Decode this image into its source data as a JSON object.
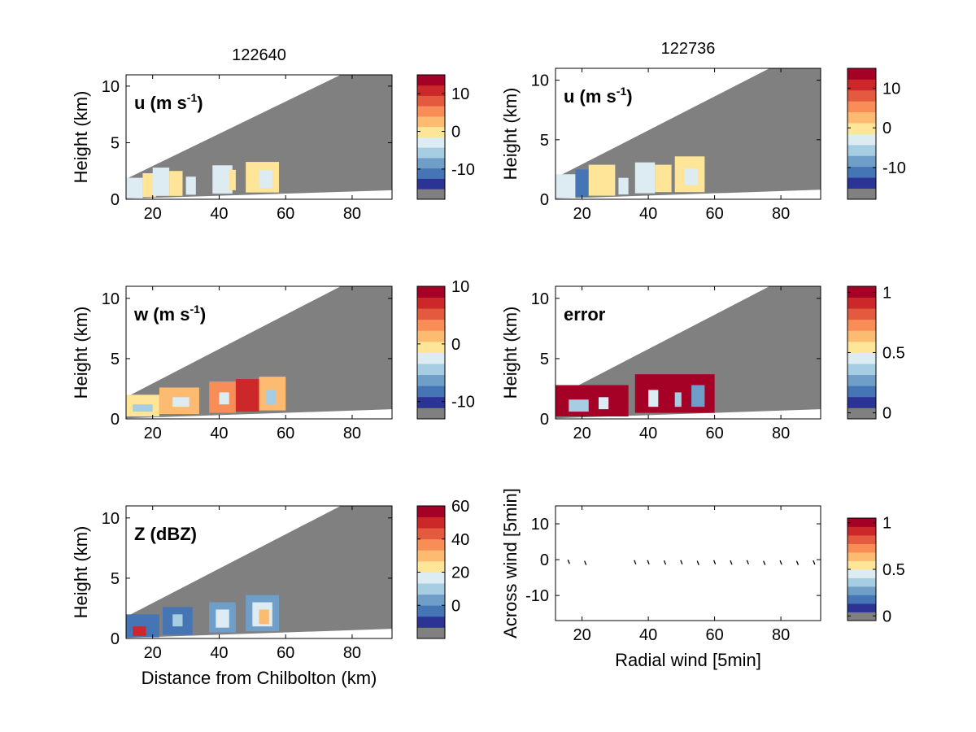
{
  "colors": {
    "background": "#ffffff",
    "nodata": "#808080",
    "colormap": [
      "#2b3494",
      "#4575b4",
      "#6f9ec9",
      "#a6cde2",
      "#dcecf2",
      "#fee597",
      "#fdbb71",
      "#f88d57",
      "#e45a3e",
      "#cc2829",
      "#a50026"
    ]
  },
  "chart_data": [
    {
      "id": "p1",
      "type": "heatmap",
      "title": "122640",
      "annotation": {
        "main": "u (m s",
        "sup": "-1",
        "tail": ")"
      },
      "xlabel": "",
      "ylabel": "Height (km)",
      "xlim": [
        12,
        92
      ],
      "ylim": [
        0,
        11
      ],
      "xticks": [
        20,
        40,
        60,
        80
      ],
      "yticks": [
        0,
        5,
        10
      ],
      "colorbar": {
        "range": [
          -18,
          15
        ],
        "ticks": [
          10,
          0,
          -10
        ]
      },
      "cells": [
        {
          "x0": 12,
          "x1": 17,
          "y0": 0.1,
          "y1": 1.9,
          "level": 4
        },
        {
          "x0": 17,
          "x1": 21,
          "y0": 0.2,
          "y1": 2.3,
          "level": 5
        },
        {
          "x0": 20,
          "x1": 25,
          "y0": 0.3,
          "y1": 2.8,
          "level": 4
        },
        {
          "x0": 25,
          "x1": 29,
          "y0": 0.3,
          "y1": 2.5,
          "level": 5
        },
        {
          "x0": 30,
          "x1": 33,
          "y0": 0.4,
          "y1": 2.0,
          "level": 4
        },
        {
          "x0": 38,
          "x1": 44,
          "y0": 0.5,
          "y1": 3.0,
          "level": 4
        },
        {
          "x0": 43,
          "x1": 45,
          "y0": 0.8,
          "y1": 2.6,
          "level": 5
        },
        {
          "x0": 48,
          "x1": 58,
          "y0": 0.6,
          "y1": 3.3,
          "level": 5
        },
        {
          "x0": 52,
          "x1": 56,
          "y0": 1.0,
          "y1": 2.6,
          "level": 4
        }
      ]
    },
    {
      "id": "p2",
      "type": "heatmap",
      "title": "122736",
      "annotation": {
        "main": "u (m s",
        "sup": "-1",
        "tail": ")"
      },
      "xlabel": "",
      "ylabel": "Height (km)",
      "xlim": [
        12,
        92
      ],
      "ylim": [
        0,
        11
      ],
      "xticks": [
        20,
        40,
        60,
        80
      ],
      "yticks": [
        0,
        5,
        10
      ],
      "colorbar": {
        "range": [
          -18,
          15
        ],
        "ticks": [
          10,
          0,
          -10
        ]
      },
      "cells": [
        {
          "x0": 12,
          "x1": 18,
          "y0": 0.1,
          "y1": 2.1,
          "level": 4
        },
        {
          "x0": 18,
          "x1": 22,
          "y0": 0.2,
          "y1": 2.5,
          "level": 1
        },
        {
          "x0": 22,
          "x1": 30,
          "y0": 0.3,
          "y1": 2.9,
          "level": 5
        },
        {
          "x0": 31,
          "x1": 34,
          "y0": 0.4,
          "y1": 1.8,
          "level": 4
        },
        {
          "x0": 36,
          "x1": 42,
          "y0": 0.5,
          "y1": 3.1,
          "level": 4
        },
        {
          "x0": 42,
          "x1": 47,
          "y0": 0.6,
          "y1": 2.9,
          "level": 5
        },
        {
          "x0": 48,
          "x1": 57,
          "y0": 0.6,
          "y1": 3.6,
          "level": 5
        },
        {
          "x0": 51,
          "x1": 55,
          "y0": 1.2,
          "y1": 2.6,
          "level": 4
        }
      ]
    },
    {
      "id": "p3",
      "type": "heatmap",
      "title": "",
      "annotation": {
        "main": "w (m s",
        "sup": "-1",
        "tail": ")"
      },
      "xlabel": "",
      "ylabel": "Height (km)",
      "xlim": [
        12,
        92
      ],
      "ylim": [
        0,
        11
      ],
      "xticks": [
        20,
        40,
        60,
        80
      ],
      "yticks": [
        0,
        5,
        10
      ],
      "colorbar": {
        "range": [
          -13,
          10
        ],
        "ticks": [
          10,
          0,
          -10
        ]
      },
      "cells": [
        {
          "x0": 12,
          "x1": 22,
          "y0": 0.2,
          "y1": 2.0,
          "level": 5
        },
        {
          "x0": 14,
          "x1": 20,
          "y0": 0.6,
          "y1": 1.2,
          "level": 3
        },
        {
          "x0": 22,
          "x1": 34,
          "y0": 0.4,
          "y1": 2.6,
          "level": 6
        },
        {
          "x0": 26,
          "x1": 31,
          "y0": 1.0,
          "y1": 1.8,
          "level": 4
        },
        {
          "x0": 37,
          "x1": 45,
          "y0": 0.5,
          "y1": 3.1,
          "level": 7
        },
        {
          "x0": 40,
          "x1": 43,
          "y0": 1.2,
          "y1": 2.2,
          "level": 4
        },
        {
          "x0": 45,
          "x1": 52,
          "y0": 0.6,
          "y1": 3.3,
          "level": 9
        },
        {
          "x0": 52,
          "x1": 60,
          "y0": 0.7,
          "y1": 3.5,
          "level": 6
        },
        {
          "x0": 54,
          "x1": 57,
          "y0": 1.2,
          "y1": 2.4,
          "level": 3
        }
      ]
    },
    {
      "id": "p4",
      "type": "heatmap",
      "title": "",
      "annotation": {
        "main": "error",
        "sup": "",
        "tail": ""
      },
      "xlabel": "",
      "ylabel": "Height (km)",
      "xlim": [
        12,
        92
      ],
      "ylim": [
        0,
        11
      ],
      "xticks": [
        20,
        40,
        60,
        80
      ],
      "yticks": [
        0,
        5,
        10
      ],
      "colorbar": {
        "range": [
          -0.05,
          1.05
        ],
        "ticks": [
          1,
          0.5,
          0
        ]
      },
      "cells": [
        {
          "x0": 12,
          "x1": 34,
          "y0": 0.2,
          "y1": 2.8,
          "level": 10
        },
        {
          "x0": 16,
          "x1": 22,
          "y0": 0.6,
          "y1": 1.6,
          "level": 3
        },
        {
          "x0": 25,
          "x1": 28,
          "y0": 0.8,
          "y1": 1.8,
          "level": 4
        },
        {
          "x0": 36,
          "x1": 60,
          "y0": 0.5,
          "y1": 3.7,
          "level": 10
        },
        {
          "x0": 40,
          "x1": 43,
          "y0": 1.0,
          "y1": 2.4,
          "level": 4
        },
        {
          "x0": 48,
          "x1": 50,
          "y0": 1.0,
          "y1": 2.2,
          "level": 3
        },
        {
          "x0": 53,
          "x1": 57,
          "y0": 1.0,
          "y1": 2.8,
          "level": 2
        }
      ]
    },
    {
      "id": "p5",
      "type": "heatmap",
      "title": "",
      "annotation": {
        "main": "Z (dBZ)",
        "sup": "",
        "tail": ""
      },
      "xlabel": "Distance from Chilbolton (km)",
      "ylabel": "Height (km)",
      "xlim": [
        12,
        92
      ],
      "ylim": [
        0,
        11
      ],
      "xticks": [
        20,
        40,
        60,
        80
      ],
      "yticks": [
        0,
        5,
        10
      ],
      "colorbar": {
        "range": [
          -20,
          60
        ],
        "ticks": [
          60,
          40,
          20,
          0
        ]
      },
      "cells": [
        {
          "x0": 12,
          "x1": 22,
          "y0": 0.1,
          "y1": 2.0,
          "level": 1
        },
        {
          "x0": 14,
          "x1": 18,
          "y0": 0.2,
          "y1": 1.0,
          "level": 9
        },
        {
          "x0": 23,
          "x1": 32,
          "y0": 0.3,
          "y1": 2.6,
          "level": 1
        },
        {
          "x0": 26,
          "x1": 29,
          "y0": 1.0,
          "y1": 2.0,
          "level": 3
        },
        {
          "x0": 37,
          "x1": 45,
          "y0": 0.5,
          "y1": 3.0,
          "level": 2
        },
        {
          "x0": 39,
          "x1": 43,
          "y0": 0.9,
          "y1": 2.4,
          "level": 4
        },
        {
          "x0": 48,
          "x1": 58,
          "y0": 0.6,
          "y1": 3.6,
          "level": 2
        },
        {
          "x0": 50,
          "x1": 56,
          "y0": 1.0,
          "y1": 3.0,
          "level": 4
        },
        {
          "x0": 52,
          "x1": 55,
          "y0": 1.2,
          "y1": 2.4,
          "level": 6
        }
      ]
    },
    {
      "id": "p6",
      "type": "scatter",
      "title": "",
      "xlabel": "Radial wind [5min]",
      "ylabel": "Across wind [5min]",
      "xlim": [
        12,
        92
      ],
      "ylim": [
        -17,
        15
      ],
      "xticks": [
        20,
        40,
        60,
        80
      ],
      "yticks": [
        10,
        0,
        -10
      ],
      "colorbar": {
        "range": [
          -0.05,
          1.05
        ],
        "ticks": [
          1,
          0.5,
          0
        ]
      },
      "points": [
        {
          "x": 16,
          "y": -0.5
        },
        {
          "x": 21,
          "y": -0.8
        },
        {
          "x": 36,
          "y": -0.6
        },
        {
          "x": 40,
          "y": -0.6
        },
        {
          "x": 45,
          "y": -0.7
        },
        {
          "x": 50,
          "y": -0.6
        },
        {
          "x": 55,
          "y": -0.8
        },
        {
          "x": 60,
          "y": -0.6
        },
        {
          "x": 65,
          "y": -0.7
        },
        {
          "x": 70,
          "y": -0.6
        },
        {
          "x": 75,
          "y": -0.8
        },
        {
          "x": 80,
          "y": -0.7
        },
        {
          "x": 85,
          "y": -0.8
        },
        {
          "x": 90,
          "y": -0.7
        }
      ]
    }
  ]
}
